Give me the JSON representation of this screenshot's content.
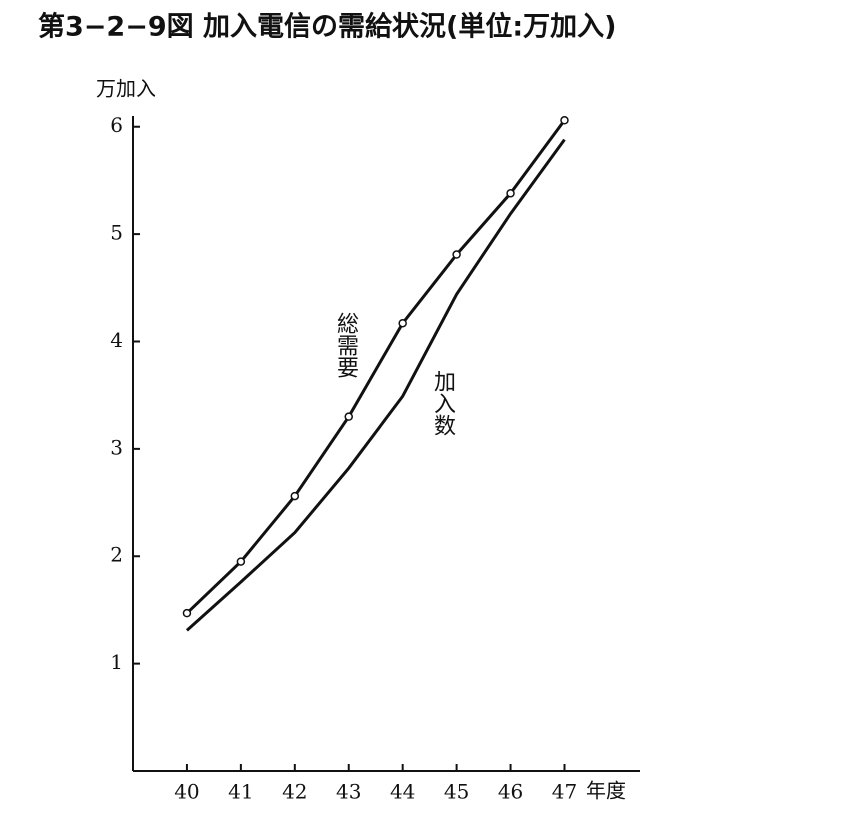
{
  "chart_data": {
    "type": "line",
    "title": "第3−2−9図 加入電信の需給状況(単位:万加入)",
    "y_label": "万加入",
    "x_label": "年度",
    "x": [
      40,
      41,
      42,
      43,
      44,
      45,
      46,
      47
    ],
    "xlim": [
      39,
      48.4
    ],
    "xticks": [
      40,
      41,
      42,
      43,
      44,
      45,
      46,
      47
    ],
    "ylim": [
      0,
      6.1
    ],
    "yticks": [
      1,
      2,
      3,
      4,
      5,
      6
    ],
    "series": [
      {
        "name": "総需要",
        "color": "#111111",
        "markers": true,
        "values": [
          1.47,
          1.95,
          2.56,
          3.3,
          4.17,
          4.81,
          5.38,
          6.06
        ]
      },
      {
        "name": "加入数",
        "color": "#111111",
        "markers": false,
        "values": [
          1.31,
          1.76,
          2.22,
          2.82,
          3.49,
          4.44,
          5.19,
          5.88
        ]
      }
    ]
  }
}
